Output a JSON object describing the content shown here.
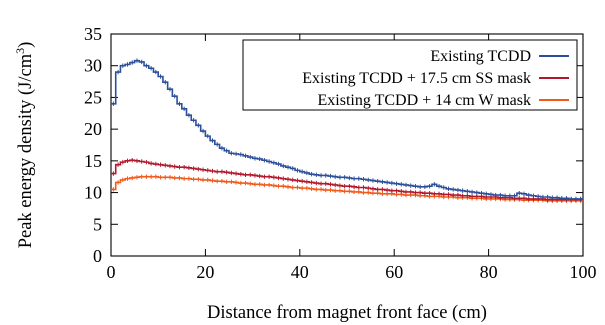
{
  "chart_data": {
    "type": "line",
    "xlabel": "Distance from magnet front face (cm)",
    "ylabel": "Peak energy density (J/cm",
    "ylabel_sup": "3",
    "ylabel_tail": ")",
    "xlim": [
      0,
      100
    ],
    "ylim": [
      0,
      35
    ],
    "x_ticks": [
      "0",
      "20",
      "40",
      "60",
      "80",
      "100"
    ],
    "y_ticks": [
      "0",
      "5",
      "10",
      "15",
      "20",
      "25",
      "30",
      "35"
    ],
    "grid": false,
    "legend_position": "top-right",
    "bin_width": 1,
    "series": [
      {
        "name": "Existing TCDD",
        "color": "#2b4f9a",
        "values": [
          24.0,
          29.0,
          30.0,
          30.2,
          30.5,
          30.8,
          30.6,
          30.0,
          29.6,
          29.0,
          28.3,
          27.4,
          26.3,
          25.2,
          24.0,
          23.2,
          22.2,
          21.4,
          20.6,
          19.7,
          18.9,
          18.2,
          17.6,
          17.0,
          16.6,
          16.2,
          16.1,
          16.0,
          15.8,
          15.6,
          15.4,
          15.3,
          15.1,
          14.9,
          14.7,
          14.5,
          14.2,
          14.0,
          13.8,
          13.5,
          13.3,
          13.1,
          12.9,
          12.8,
          12.7,
          12.7,
          12.6,
          12.5,
          12.4,
          12.4,
          12.3,
          12.2,
          12.2,
          12.1,
          12.0,
          11.9,
          11.8,
          11.7,
          11.6,
          11.5,
          11.4,
          11.3,
          11.2,
          11.1,
          11.0,
          10.9,
          10.9,
          11.0,
          11.3,
          11.0,
          10.8,
          10.6,
          10.5,
          10.4,
          10.3,
          10.2,
          10.1,
          10.0,
          9.9,
          9.8,
          9.7,
          9.6,
          9.6,
          9.5,
          9.5,
          9.5,
          9.9,
          9.8,
          9.6,
          9.5,
          9.4,
          9.3,
          9.3,
          9.2,
          9.2,
          9.1,
          9.1,
          9.0,
          9.0,
          9.0
        ]
      },
      {
        "name": "Existing TCDD + 17.5 cm SS mask",
        "color": "#b2182b",
        "values": [
          13.0,
          14.4,
          14.8,
          15.0,
          15.1,
          15.0,
          14.9,
          14.8,
          14.6,
          14.5,
          14.4,
          14.3,
          14.2,
          14.1,
          14.0,
          14.0,
          13.9,
          13.8,
          13.7,
          13.6,
          13.5,
          13.4,
          13.3,
          13.3,
          13.2,
          13.1,
          13.0,
          12.9,
          12.8,
          12.8,
          12.7,
          12.6,
          12.5,
          12.5,
          12.4,
          12.3,
          12.2,
          12.1,
          12.0,
          11.9,
          11.8,
          11.7,
          11.6,
          11.5,
          11.4,
          11.4,
          11.3,
          11.2,
          11.1,
          11.0,
          11.0,
          10.9,
          10.8,
          10.8,
          10.7,
          10.6,
          10.5,
          10.5,
          10.4,
          10.3,
          10.3,
          10.2,
          10.1,
          10.1,
          10.0,
          10.0,
          9.9,
          9.9,
          9.8,
          9.8,
          9.7,
          9.7,
          9.6,
          9.6,
          9.5,
          9.5,
          9.4,
          9.4,
          9.4,
          9.3,
          9.3,
          9.3,
          9.2,
          9.2,
          9.2,
          9.1,
          9.1,
          9.1,
          9.0,
          9.0,
          9.0,
          9.0,
          8.9,
          8.9,
          8.9,
          8.9,
          8.9,
          8.9,
          8.9,
          8.9
        ]
      },
      {
        "name": "Existing TCDD + 14 cm W mask",
        "color": "#f05a1a",
        "values": [
          10.5,
          11.6,
          12.0,
          12.2,
          12.3,
          12.4,
          12.5,
          12.5,
          12.5,
          12.5,
          12.4,
          12.4,
          12.4,
          12.3,
          12.3,
          12.2,
          12.2,
          12.1,
          12.1,
          12.0,
          12.0,
          11.9,
          11.8,
          11.8,
          11.7,
          11.7,
          11.6,
          11.5,
          11.5,
          11.4,
          11.3,
          11.3,
          11.2,
          11.2,
          11.1,
          11.0,
          11.0,
          10.9,
          10.8,
          10.8,
          10.7,
          10.7,
          10.6,
          10.5,
          10.5,
          10.4,
          10.4,
          10.3,
          10.3,
          10.2,
          10.2,
          10.1,
          10.1,
          10.0,
          10.0,
          9.9,
          9.9,
          9.8,
          9.8,
          9.8,
          9.7,
          9.7,
          9.6,
          9.6,
          9.6,
          9.5,
          9.5,
          9.4,
          9.4,
          9.4,
          9.3,
          9.3,
          9.3,
          9.2,
          9.2,
          9.2,
          9.1,
          9.1,
          9.1,
          9.0,
          9.0,
          9.0,
          9.0,
          8.9,
          8.9,
          8.9,
          8.9,
          8.8,
          8.8,
          8.8,
          8.8,
          8.8,
          8.7,
          8.7,
          8.7,
          8.7,
          8.7,
          8.7,
          8.7,
          8.7
        ]
      }
    ]
  }
}
